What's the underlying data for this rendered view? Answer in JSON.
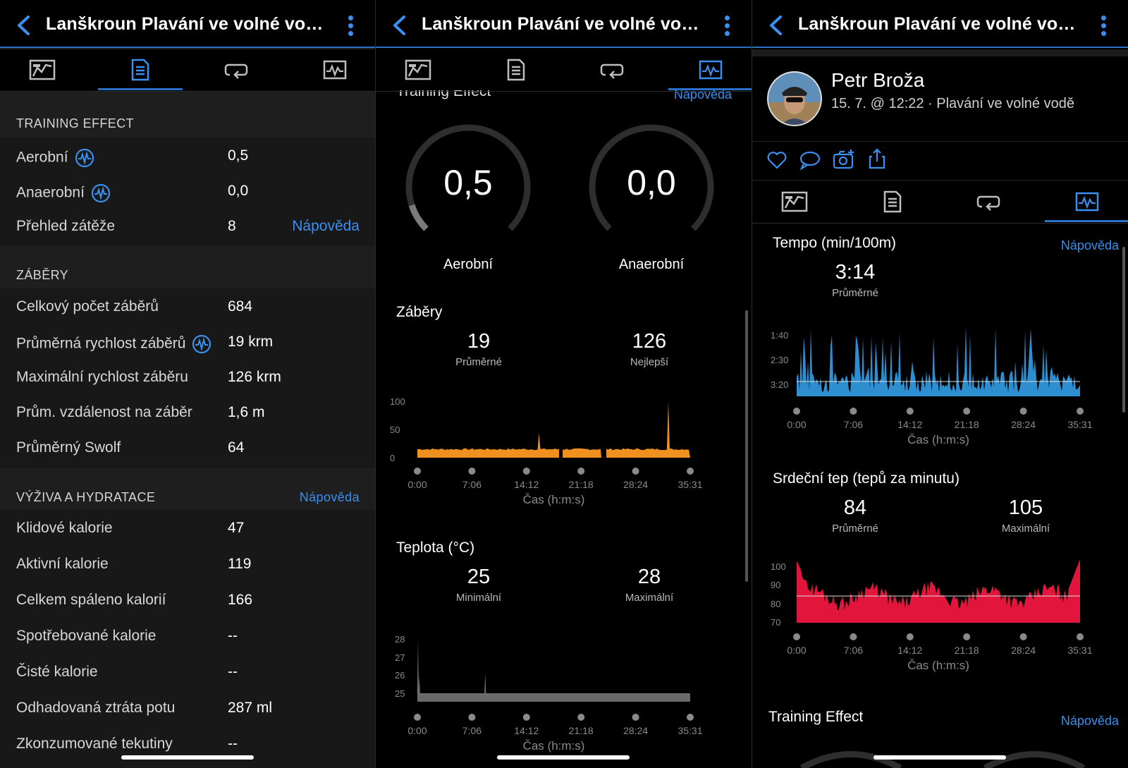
{
  "title": "Lanškroun Plavání ve volné vodě...",
  "colors": {
    "accent": "#3a8fef",
    "orange": "#f0901e",
    "blue": "#2e8fd0",
    "red": "#e2163c",
    "gray": "#6a6a6a"
  },
  "tabs": [
    {
      "icon": "summary-chart-icon"
    },
    {
      "icon": "details-list-icon"
    },
    {
      "icon": "laps-loop-icon"
    },
    {
      "icon": "graphs-pulse-icon"
    }
  ],
  "panel1": {
    "training_effect": {
      "header": "TRAINING EFFECT",
      "rows": [
        {
          "label": "Aerobní",
          "value": "0,5"
        },
        {
          "label": "Anaerobní",
          "value": "0,0"
        },
        {
          "label": "Přehled zátěže",
          "value": "8",
          "help": "Nápověda"
        }
      ]
    },
    "strokes": {
      "header": "ZÁBĚRY",
      "rows": [
        {
          "label": "Celkový počet záběrů",
          "value": "684"
        },
        {
          "label": "Průměrná rychlost záběrů",
          "value": "19 krm"
        },
        {
          "label": "Maximální rychlost záběru",
          "value": "126 krm"
        },
        {
          "label": "Prům. vzdálenost na záběr",
          "value": "1,6 m"
        },
        {
          "label": "Průměrný Swolf",
          "value": "64"
        }
      ]
    },
    "nutrition": {
      "header": "VÝŽIVA A HYDRATACE",
      "help": "Nápověda",
      "rows": [
        {
          "label": "Klidové kalorie",
          "value": "47"
        },
        {
          "label": "Aktivní kalorie",
          "value": "119"
        },
        {
          "label": "Celkem spáleno kalorií",
          "value": "166"
        },
        {
          "label": "Spotřebované kalorie",
          "value": "--"
        },
        {
          "label": "Čisté kalorie",
          "value": "--"
        },
        {
          "label": "Odhadovaná ztráta potu",
          "value": "287 ml"
        },
        {
          "label": "Zkonzumované tekutiny",
          "value": "--"
        }
      ]
    }
  },
  "panel2": {
    "te_header_partial": "Training Effect",
    "help": "Nápověda",
    "gauges": [
      {
        "value": "0,5",
        "label": "Aerobní",
        "fraction": 0.1
      },
      {
        "value": "0,0",
        "label": "Anaerobní",
        "fraction": 0.0
      }
    ],
    "strokes": {
      "title": "Záběry",
      "stats": [
        {
          "value": "19",
          "label": "Průměrné"
        },
        {
          "value": "126",
          "label": "Nejlepší"
        }
      ]
    },
    "temperature": {
      "title": "Teplota (°C)",
      "stats": [
        {
          "value": "25",
          "label": "Minimální"
        },
        {
          "value": "28",
          "label": "Maximální"
        }
      ]
    },
    "xlabel": "Čas (h:m:s)"
  },
  "panel3": {
    "user": {
      "name": "Petr Broža",
      "meta": "15. 7. @ 12:22 · Plavání ve volné vodě"
    },
    "actions": [
      {
        "icon": "heart-icon"
      },
      {
        "icon": "comment-icon"
      },
      {
        "icon": "camera-add-icon"
      },
      {
        "icon": "share-icon"
      }
    ],
    "pace": {
      "title": "Tempo (min/100m)",
      "help": "Nápověda",
      "stats": [
        {
          "value": "3:14",
          "label": "Průměrné"
        }
      ]
    },
    "hr": {
      "title": "Srdeční tep (tepů za minutu)",
      "stats": [
        {
          "value": "84",
          "label": "Průměrné"
        },
        {
          "value": "105",
          "label": "Maximální"
        }
      ]
    },
    "te": {
      "title": "Training Effect",
      "help": "Nápověda"
    },
    "xlabel": "Čas (h:m:s)"
  },
  "chart_data": [
    {
      "type": "area",
      "series": [
        {
          "name": "Záběry",
          "color": "#f0901e"
        }
      ],
      "x": [
        "0:00",
        "7:06",
        "14:12",
        "21:18",
        "28:24",
        "35:31"
      ],
      "baseline_value": 19,
      "spikes": [
        {
          "x": "15:50",
          "y": 55
        },
        {
          "x": "32:40",
          "y": 126
        }
      ],
      "yticks": [
        "100",
        "50",
        "0"
      ],
      "ylim": [
        0,
        126
      ],
      "xlabel": "Čas (h:m:s)"
    },
    {
      "type": "area",
      "series": [
        {
          "name": "Teplota (°C)",
          "color": "#6a6a6a"
        }
      ],
      "x": [
        "0:00",
        "7:06",
        "14:12",
        "21:18",
        "28:24",
        "35:31"
      ],
      "baseline_value": 25,
      "spikes": [
        {
          "x": "0:05",
          "y": 28
        },
        {
          "x": "0:15",
          "y": 26
        },
        {
          "x": "8:50",
          "y": 26.1
        }
      ],
      "yticks": [
        "28",
        "27",
        "26",
        "25"
      ],
      "ylim": [
        25,
        28
      ],
      "xlabel": "Čas (h:m:s)"
    },
    {
      "type": "area",
      "series": [
        {
          "name": "Tempo (min/100m)",
          "color": "#2e8fd0"
        }
      ],
      "x": [
        "0:00",
        "7:06",
        "14:12",
        "21:18",
        "28:24",
        "35:31"
      ],
      "average": "3:14",
      "yticks": [
        "1:40",
        "2:30",
        "3:20"
      ],
      "xlabel": "Čas (h:m:s)"
    },
    {
      "type": "area",
      "series": [
        {
          "name": "Srdeční tep (tepů za minutu)",
          "color": "#e2163c"
        }
      ],
      "x": [
        "0:00",
        "7:06",
        "14:12",
        "21:18",
        "28:24",
        "35:31"
      ],
      "average": 84,
      "max": 105,
      "yticks": [
        "100",
        "90",
        "80",
        "70"
      ],
      "ylim": [
        70,
        105
      ],
      "xlabel": "Čas (h:m:s)"
    }
  ]
}
